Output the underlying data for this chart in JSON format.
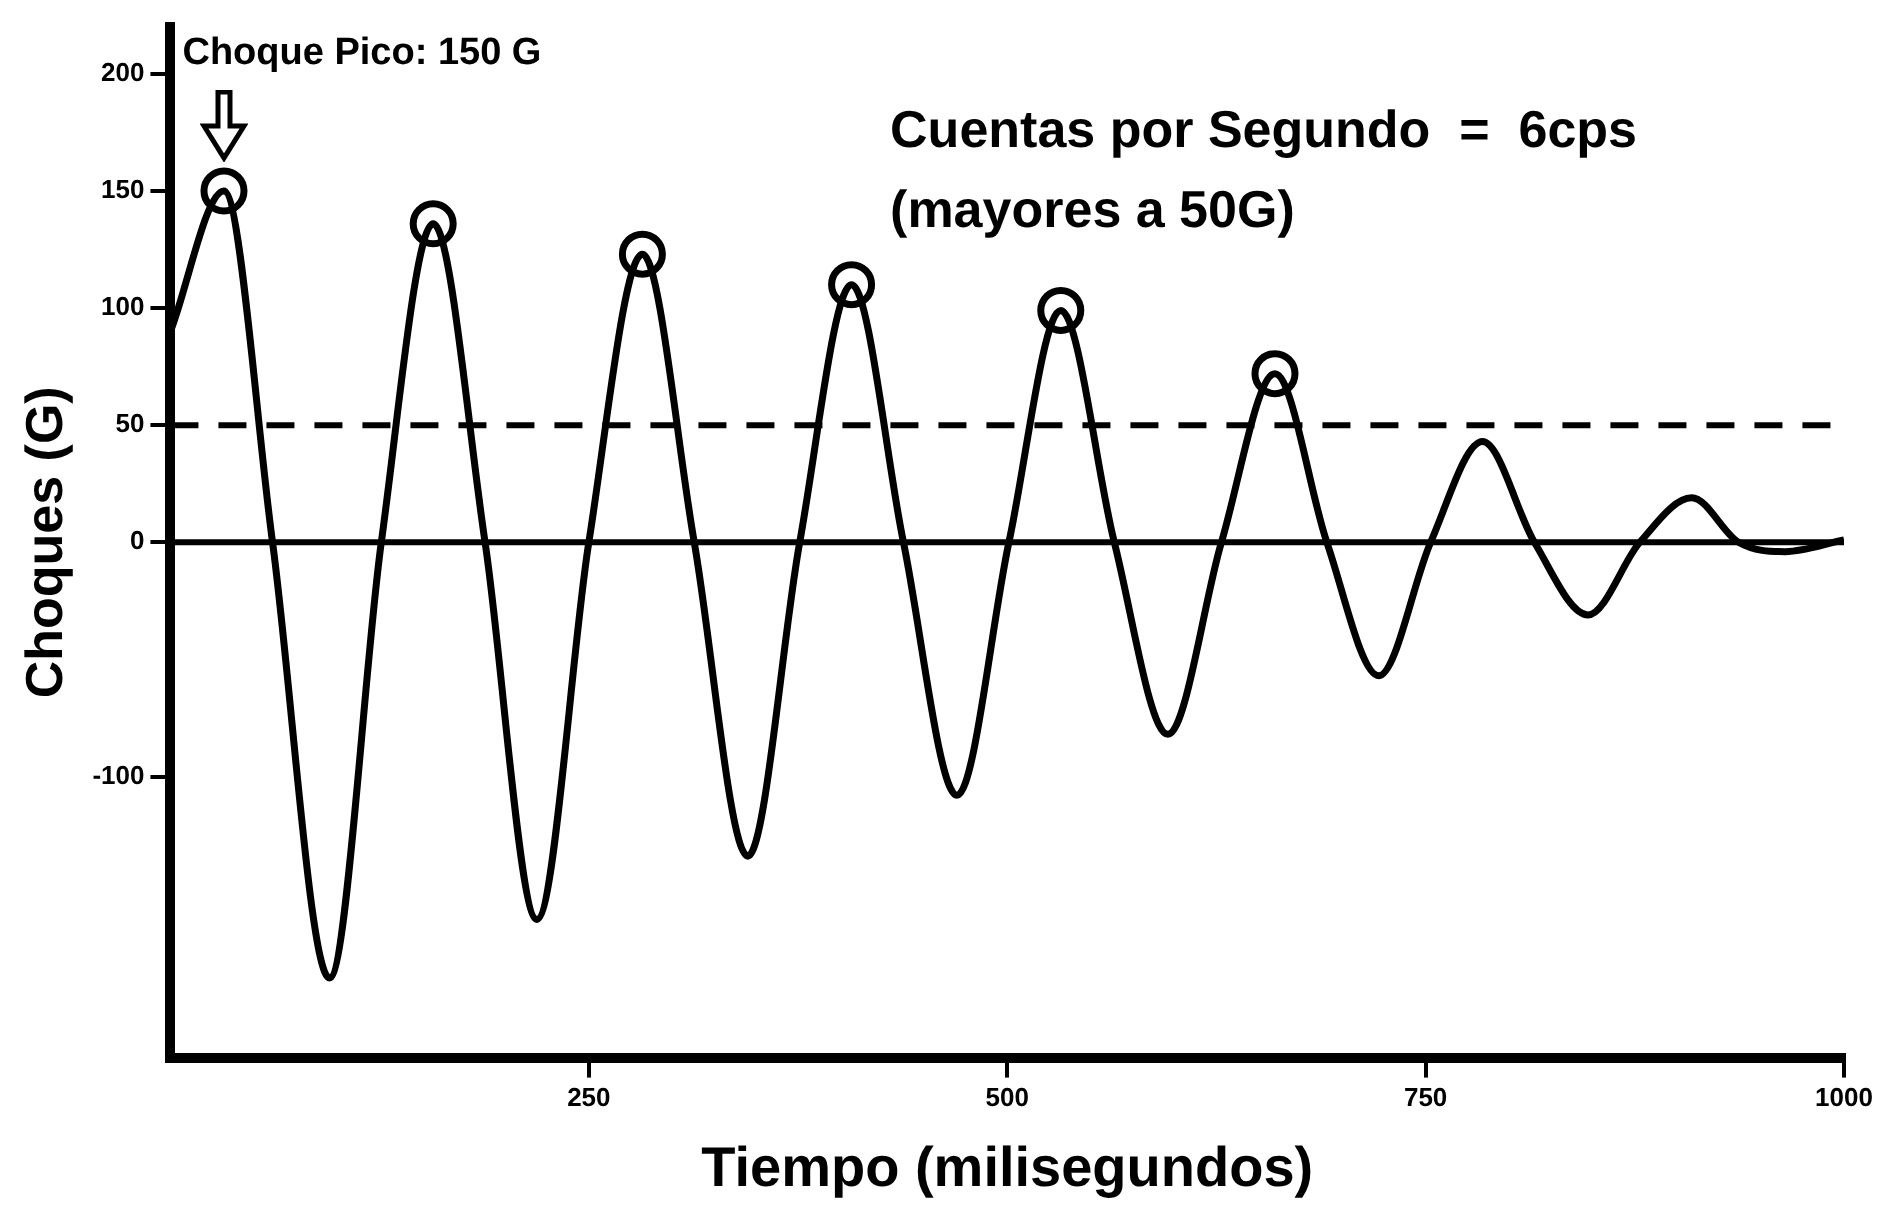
{
  "chart_data": {
    "type": "line",
    "xlabel": "Tiempo (milisegundos)",
    "ylabel": "Choques (G)",
    "annotations": [
      "Choque Pico: 150 G",
      "Cuentas por Segundo  =  6cps",
      "(mayores a 50G)"
    ],
    "series": [
      {
        "color": "#000000",
        "marker": "none",
        "line_style": "solid",
        "x": [
          0,
          32,
          61,
          95,
          126,
          157,
          188,
          219,
          250,
          282,
          313,
          345,
          376,
          407,
          438,
          470,
          501,
          532,
          564,
          596,
          628,
          660,
          691,
          722,
          753,
          784,
          815,
          847,
          878,
          909,
          937,
          965,
          1000
        ],
        "values": [
          90,
          150,
          0,
          -186,
          0,
          136,
          0,
          -161,
          0,
          123,
          0,
          -134,
          0,
          110,
          0,
          -108,
          0,
          99,
          0,
          -82,
          0,
          72,
          0,
          -57,
          0,
          43,
          0,
          -31,
          0,
          19,
          0,
          -4,
          1
        ]
      },
      {
        "type": "scatter",
        "color": "#000000",
        "marker": "circle",
        "x": [
          32,
          157,
          282,
          407,
          532,
          660
        ],
        "values": [
          150,
          136,
          123,
          110,
          99,
          72
        ]
      }
    ],
    "ref_lines": [
      {
        "axis": "y",
        "value": 50,
        "line_style": "dashed"
      },
      {
        "axis": "y",
        "value": 0,
        "line_style": "solid"
      }
    ],
    "xlim": [
      0,
      1000
    ],
    "xticks": [
      250,
      500,
      750,
      1000
    ],
    "ylim": [
      -220,
      220
    ],
    "yticks": [
      -100,
      0,
      50,
      100,
      150,
      200
    ],
    "grid": false,
    "legend": false
  }
}
